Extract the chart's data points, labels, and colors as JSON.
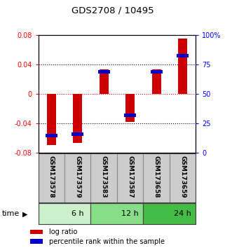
{
  "title": "GDS2708 / 10495",
  "samples": [
    "GSM173578",
    "GSM173579",
    "GSM173583",
    "GSM173587",
    "GSM173658",
    "GSM173659"
  ],
  "log_ratio": [
    -0.07,
    -0.067,
    0.033,
    -0.038,
    0.033,
    0.075
  ],
  "percentile_rank": [
    0.145,
    0.155,
    0.685,
    0.315,
    0.685,
    0.82
  ],
  "ylim_left": [
    -0.08,
    0.08
  ],
  "ylim_right": [
    0,
    100
  ],
  "left_ticks": [
    -0.08,
    -0.04,
    0,
    0.04,
    0.08
  ],
  "right_ticks": [
    0,
    25,
    50,
    75,
    100
  ],
  "left_tick_labels": [
    "-0.08",
    "-0.04",
    "0",
    "0.04",
    "0.08"
  ],
  "right_tick_labels": [
    "0",
    "25",
    "50",
    "75",
    "100%"
  ],
  "dotted_lines_black": [
    -0.04,
    0.04
  ],
  "dotted_line_red": 0,
  "bar_color": "#cc0000",
  "blue_color": "#0000cc",
  "time_groups": [
    {
      "label": "6 h",
      "start": 0,
      "end": 2,
      "color": "#ccf0cc"
    },
    {
      "label": "12 h",
      "start": 2,
      "end": 4,
      "color": "#88dd88"
    },
    {
      "label": "24 h",
      "start": 4,
      "end": 6,
      "color": "#44bb44"
    }
  ],
  "time_label": "time",
  "legend_red": "log ratio",
  "legend_blue": "percentile rank within the sample",
  "bar_width": 0.35,
  "sample_box_color": "#cccccc",
  "sample_box_border": "#888888"
}
